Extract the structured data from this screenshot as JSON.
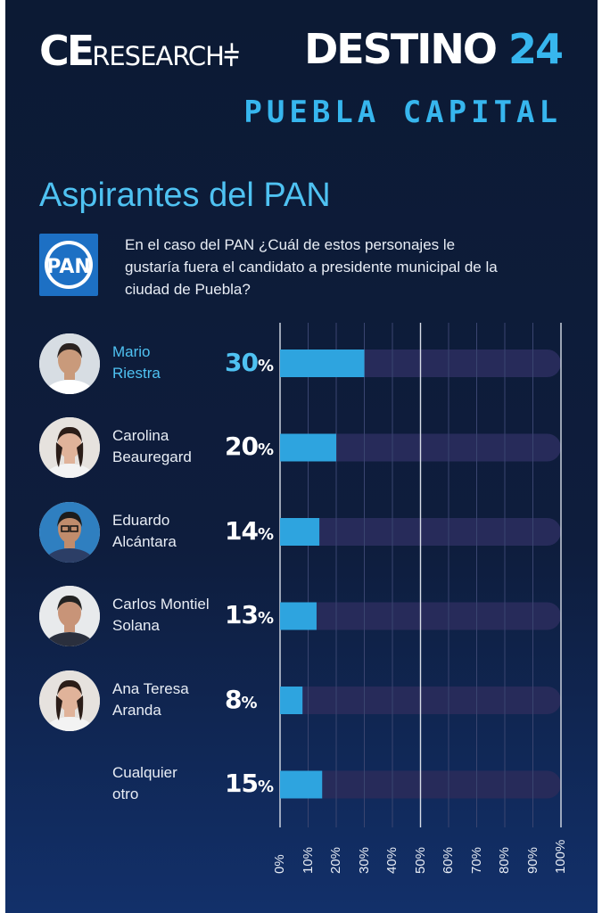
{
  "brand": {
    "left_ce": "CE",
    "left_research": "RESEARCH",
    "right_text": "DESTINO ",
    "right_num": "24",
    "subtitle": "PUEBLA CAPITAL"
  },
  "heading": "Aspirantes del PAN",
  "question": "En el caso del PAN ¿Cuál de estos personajes le gustaría fuera el candidato a presidente municipal de la ciudad de Puebla?",
  "logo_text": "PAN",
  "colors": {
    "accent": "#37b6ee",
    "bar_fill": "#2ea4df",
    "bar_track": "#272b5a",
    "background": "#0c1a34"
  },
  "chart_data": {
    "type": "bar",
    "orientation": "horizontal",
    "categories": [
      "Mario Riestra",
      "Carolina Beauregard",
      "Eduardo Alcántara",
      "Carlos Montiel Solana",
      "Ana Teresa Aranda",
      "Cualquier otro"
    ],
    "name_lines": [
      [
        "Mario",
        "Riestra"
      ],
      [
        "Carolina",
        "Beauregard"
      ],
      [
        "Eduardo",
        "Alcántara"
      ],
      [
        "Carlos Montiel",
        "Solana"
      ],
      [
        "Ana Teresa",
        "Aranda"
      ],
      [
        "Cualquier",
        "otro"
      ]
    ],
    "values": [
      30,
      20,
      14,
      13,
      8,
      15
    ],
    "value_labels": [
      "30",
      "20",
      "14",
      "13",
      "8",
      "15"
    ],
    "value_suffix": "%",
    "highlight_index": 0,
    "xlim": [
      0,
      100
    ],
    "xticks": [
      "0%",
      "10%",
      "20%",
      "30%",
      "40%",
      "50%",
      "60%",
      "70%",
      "80%",
      "90%",
      "100%"
    ],
    "grid": true
  },
  "photos": [
    "man-portrait",
    "woman-portrait",
    "man-glasses-portrait",
    "man-suit-portrait",
    "woman-portrait",
    ""
  ]
}
